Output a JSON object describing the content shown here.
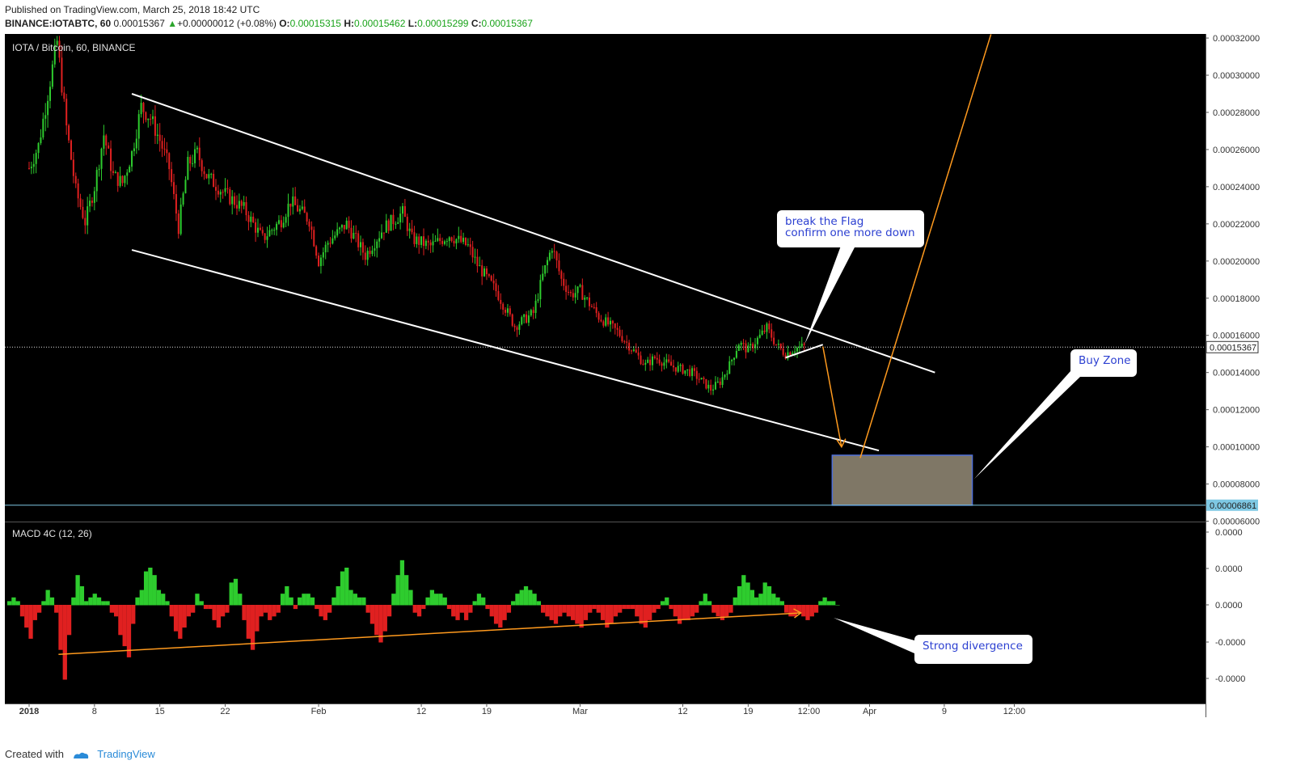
{
  "header": {
    "published": "Published on TradingView.com, March 25, 2018 18:42 UTC",
    "symbol": "BINANCE:IOTABTC, 60",
    "last": "0.00015367",
    "change": "+0.00000012 (+0.08%)",
    "o_label": "O:",
    "o_value": "0.00015315",
    "h_label": "H:",
    "h_value": "0.00015462",
    "l_label": "L:",
    "l_value": "0.00015299",
    "c_label": "C:",
    "c_value": "0.00015367"
  },
  "footer": {
    "created_with": "Created with",
    "brand": "TradingView"
  },
  "colors": {
    "up": "#2ecc2e",
    "down": "#e02020",
    "orange": "#ff9a1e",
    "zone_fill": "#7f7766",
    "zone_border": "#4f6fd8",
    "support": "#7ec8e3",
    "callout_text": "#2b3fd1"
  },
  "chart_data": [
    {
      "type": "candlestick",
      "title": "IOTA / Bitcoin, 60, BINANCE",
      "x_ticks": [
        "2018",
        "8",
        "15",
        "22",
        "Feb",
        "12",
        "19",
        "Mar",
        "12",
        "19",
        "12:00",
        "Apr",
        "9",
        "12:00"
      ],
      "y_ticks": [
        "0.00032000",
        "0.00030000",
        "0.00028000",
        "0.00026000",
        "0.00024000",
        "0.00022000",
        "0.00020000",
        "0.00018000",
        "0.00016000",
        "0.00014000",
        "0.00012000",
        "0.00010000",
        "0.00008000",
        "0.00006000"
      ],
      "ylim": [
        5.98e-05,
        0.0003222
      ],
      "last_price_label": "0.00015367",
      "support_label": "0.00006861",
      "path": [
        [
          "2018",
          0.00025
        ],
        [
          "2018-01-02",
          0.000262
        ],
        [
          "2018-01-04",
          0.000318
        ],
        [
          "2018-01-05",
          0.000272
        ],
        [
          "2018-01-06",
          0.000238
        ],
        [
          "2018-01-07",
          0.000221
        ],
        [
          "2018-01-08",
          0.00024
        ],
        [
          "2018-01-09",
          0.000268
        ],
        [
          "2018-01-10",
          0.000246
        ],
        [
          "2018-01-11",
          0.000242
        ],
        [
          "2018-01-12",
          0.000258
        ],
        [
          "2018-01-13",
          0.000283
        ],
        [
          "2018-01-14",
          0.000277
        ],
        [
          "2018-01-15",
          0.000265
        ],
        [
          "2018-01-16",
          0.00025
        ],
        [
          "2018-01-17",
          0.000218
        ],
        [
          "2018-01-18",
          0.000252
        ],
        [
          "2018-01-19",
          0.000258
        ],
        [
          "2018-01-20",
          0.000246
        ],
        [
          "2018-01-22",
          0.000236
        ],
        [
          "2018-01-24",
          0.000228
        ],
        [
          "2018-01-26",
          0.000212
        ],
        [
          "2018-01-28",
          0.000222
        ],
        [
          "2018-01-29",
          0.000232
        ],
        [
          "2018-01-31",
          0.000222
        ],
        [
          "2018-02-01",
          0.0002
        ],
        [
          "2018-02-02",
          0.00021
        ],
        [
          "2018-02-04",
          0.00022
        ],
        [
          "2018-02-06",
          0.000203
        ],
        [
          "2018-02-08",
          0.000218
        ],
        [
          "2018-02-10",
          0.000226
        ],
        [
          "2018-02-11",
          0.000212
        ],
        [
          "2018-02-13",
          0.000208
        ],
        [
          "2018-02-15",
          0.000214
        ],
        [
          "2018-02-17",
          0.000208
        ],
        [
          "2018-02-18",
          0.000198
        ],
        [
          "2018-02-20",
          0.000184
        ],
        [
          "2018-02-22",
          0.000165
        ],
        [
          "2018-02-24",
          0.000172
        ],
        [
          "2018-02-25",
          0.000192
        ],
        [
          "2018-02-26",
          0.000208
        ],
        [
          "2018-02-27",
          0.00019
        ],
        [
          "2018-02-28",
          0.000182
        ],
        [
          "Mar",
          0.000184
        ],
        [
          "2018-03-03",
          0.00017
        ],
        [
          "2018-03-05",
          0.000162
        ],
        [
          "2018-03-07",
          0.00015
        ],
        [
          "2018-03-08",
          0.000144
        ],
        [
          "2018-03-09",
          0.000148
        ],
        [
          "2018-03-11",
          0.000143
        ],
        [
          "2018-03-13",
          0.00014
        ],
        [
          "2018-03-15",
          0.000131
        ],
        [
          "2018-03-16",
          0.000135
        ],
        [
          "2018-03-17",
          0.000144
        ],
        [
          "2018-03-18",
          0.000156
        ],
        [
          "2018-03-19",
          0.000152
        ],
        [
          "2018-03-21",
          0.000164
        ],
        [
          "2018-03-22",
          0.000155
        ],
        [
          "2018-03-23",
          0.00015
        ],
        [
          "2018-03-24",
          0.000153
        ],
        [
          "2018-03-25",
          0.000154
        ]
      ],
      "trend_lines": [
        {
          "name": "upper channel",
          "from": [
            "2018-01-12",
            0.00029
          ],
          "to": [
            "2018-04-08",
            0.00014
          ]
        },
        {
          "name": "lower channel",
          "from": [
            "2018-01-12",
            0.000206
          ],
          "to": [
            "2018-04-02",
            9.8e-05
          ]
        },
        {
          "name": "flag",
          "from": [
            "2018-03-23",
            0.000148
          ],
          "to": [
            "2018-03-27",
            0.000155
          ]
        }
      ],
      "projection": {
        "down": {
          "from": [
            "2018-03-27",
            0.000154
          ],
          "to": [
            "2018-03-29",
            0.0001
          ]
        },
        "up": {
          "from": [
            "2018-03-31",
            9.4e-05
          ],
          "to": [
            "2018-04-14",
            0.000322
          ]
        }
      },
      "zone": {
        "label": "Buy Zone",
        "from_date": "2018-03-28",
        "to_date": "2018-04-12",
        "y_top": 9.55e-05,
        "y_bottom": 6.86e-05
      },
      "annotations": [
        {
          "lines": [
            "break the Flag",
            "confirm one more down"
          ],
          "target": [
            "2018-03-26",
            0.000154
          ]
        },
        {
          "lines": [
            "Buy Zone"
          ],
          "target": [
            "2018-04-12",
            8e-05
          ]
        }
      ]
    },
    {
      "type": "histogram",
      "title": "MACD 4C (12, 26)",
      "y_ticks": [
        "0.0000",
        "0.0000",
        "0.0000",
        "-0.0000",
        "-0.0000"
      ],
      "values": [
        1,
        2,
        1,
        -3,
        -6,
        -9,
        -4,
        -2,
        1,
        4,
        2,
        -2,
        -12,
        -20,
        -8,
        2,
        8,
        5,
        1,
        2,
        3,
        2,
        1,
        1,
        -2,
        -3,
        -8,
        -11,
        -14,
        -5,
        2,
        4,
        9,
        10,
        8,
        4,
        3,
        1,
        -3,
        -7,
        -9,
        -6,
        -3,
        -2,
        3,
        1,
        -1,
        -1,
        -4,
        -6,
        -3,
        -2,
        6,
        7,
        3,
        -4,
        -9,
        -12,
        -7,
        -3,
        -2,
        -4,
        -3,
        -2,
        3,
        5,
        2,
        -1,
        2,
        3,
        3,
        2,
        -1,
        -3,
        -4,
        -2,
        2,
        5,
        9,
        10,
        4,
        3,
        2,
        2,
        -2,
        -5,
        -8,
        -10,
        -7,
        -3,
        3,
        8,
        12,
        8,
        4,
        -2,
        -3,
        -1,
        2,
        4,
        3,
        3,
        2,
        -1,
        -3,
        -4,
        -2,
        -4,
        -2,
        1,
        3,
        2,
        -1,
        -3,
        -5,
        -6,
        -4,
        -2,
        1,
        3,
        4,
        5,
        4,
        3,
        1,
        -2,
        -3,
        -4,
        -5,
        -3,
        -2,
        -3,
        -4,
        -5,
        -6,
        -4,
        -2,
        -1,
        -2,
        -4,
        -6,
        -5,
        -3,
        -2,
        -1,
        -1,
        -1,
        -3,
        -5,
        -6,
        -4,
        -2,
        -1,
        1,
        2,
        -1,
        -3,
        -5,
        -4,
        -4,
        -3,
        -2,
        1,
        3,
        1,
        -2,
        -3,
        -4,
        -3,
        -2,
        2,
        5,
        8,
        6,
        4,
        2,
        3,
        6,
        5,
        3,
        2,
        1,
        -2,
        -3,
        -3,
        -2,
        -3,
        -4,
        -3,
        -2,
        1,
        2,
        1,
        1,
        0
      ],
      "divergence_line": {
        "from_index": 12,
        "to_index": 184
      },
      "annotations": [
        {
          "lines": [
            "Strong divergence"
          ]
        }
      ]
    }
  ]
}
